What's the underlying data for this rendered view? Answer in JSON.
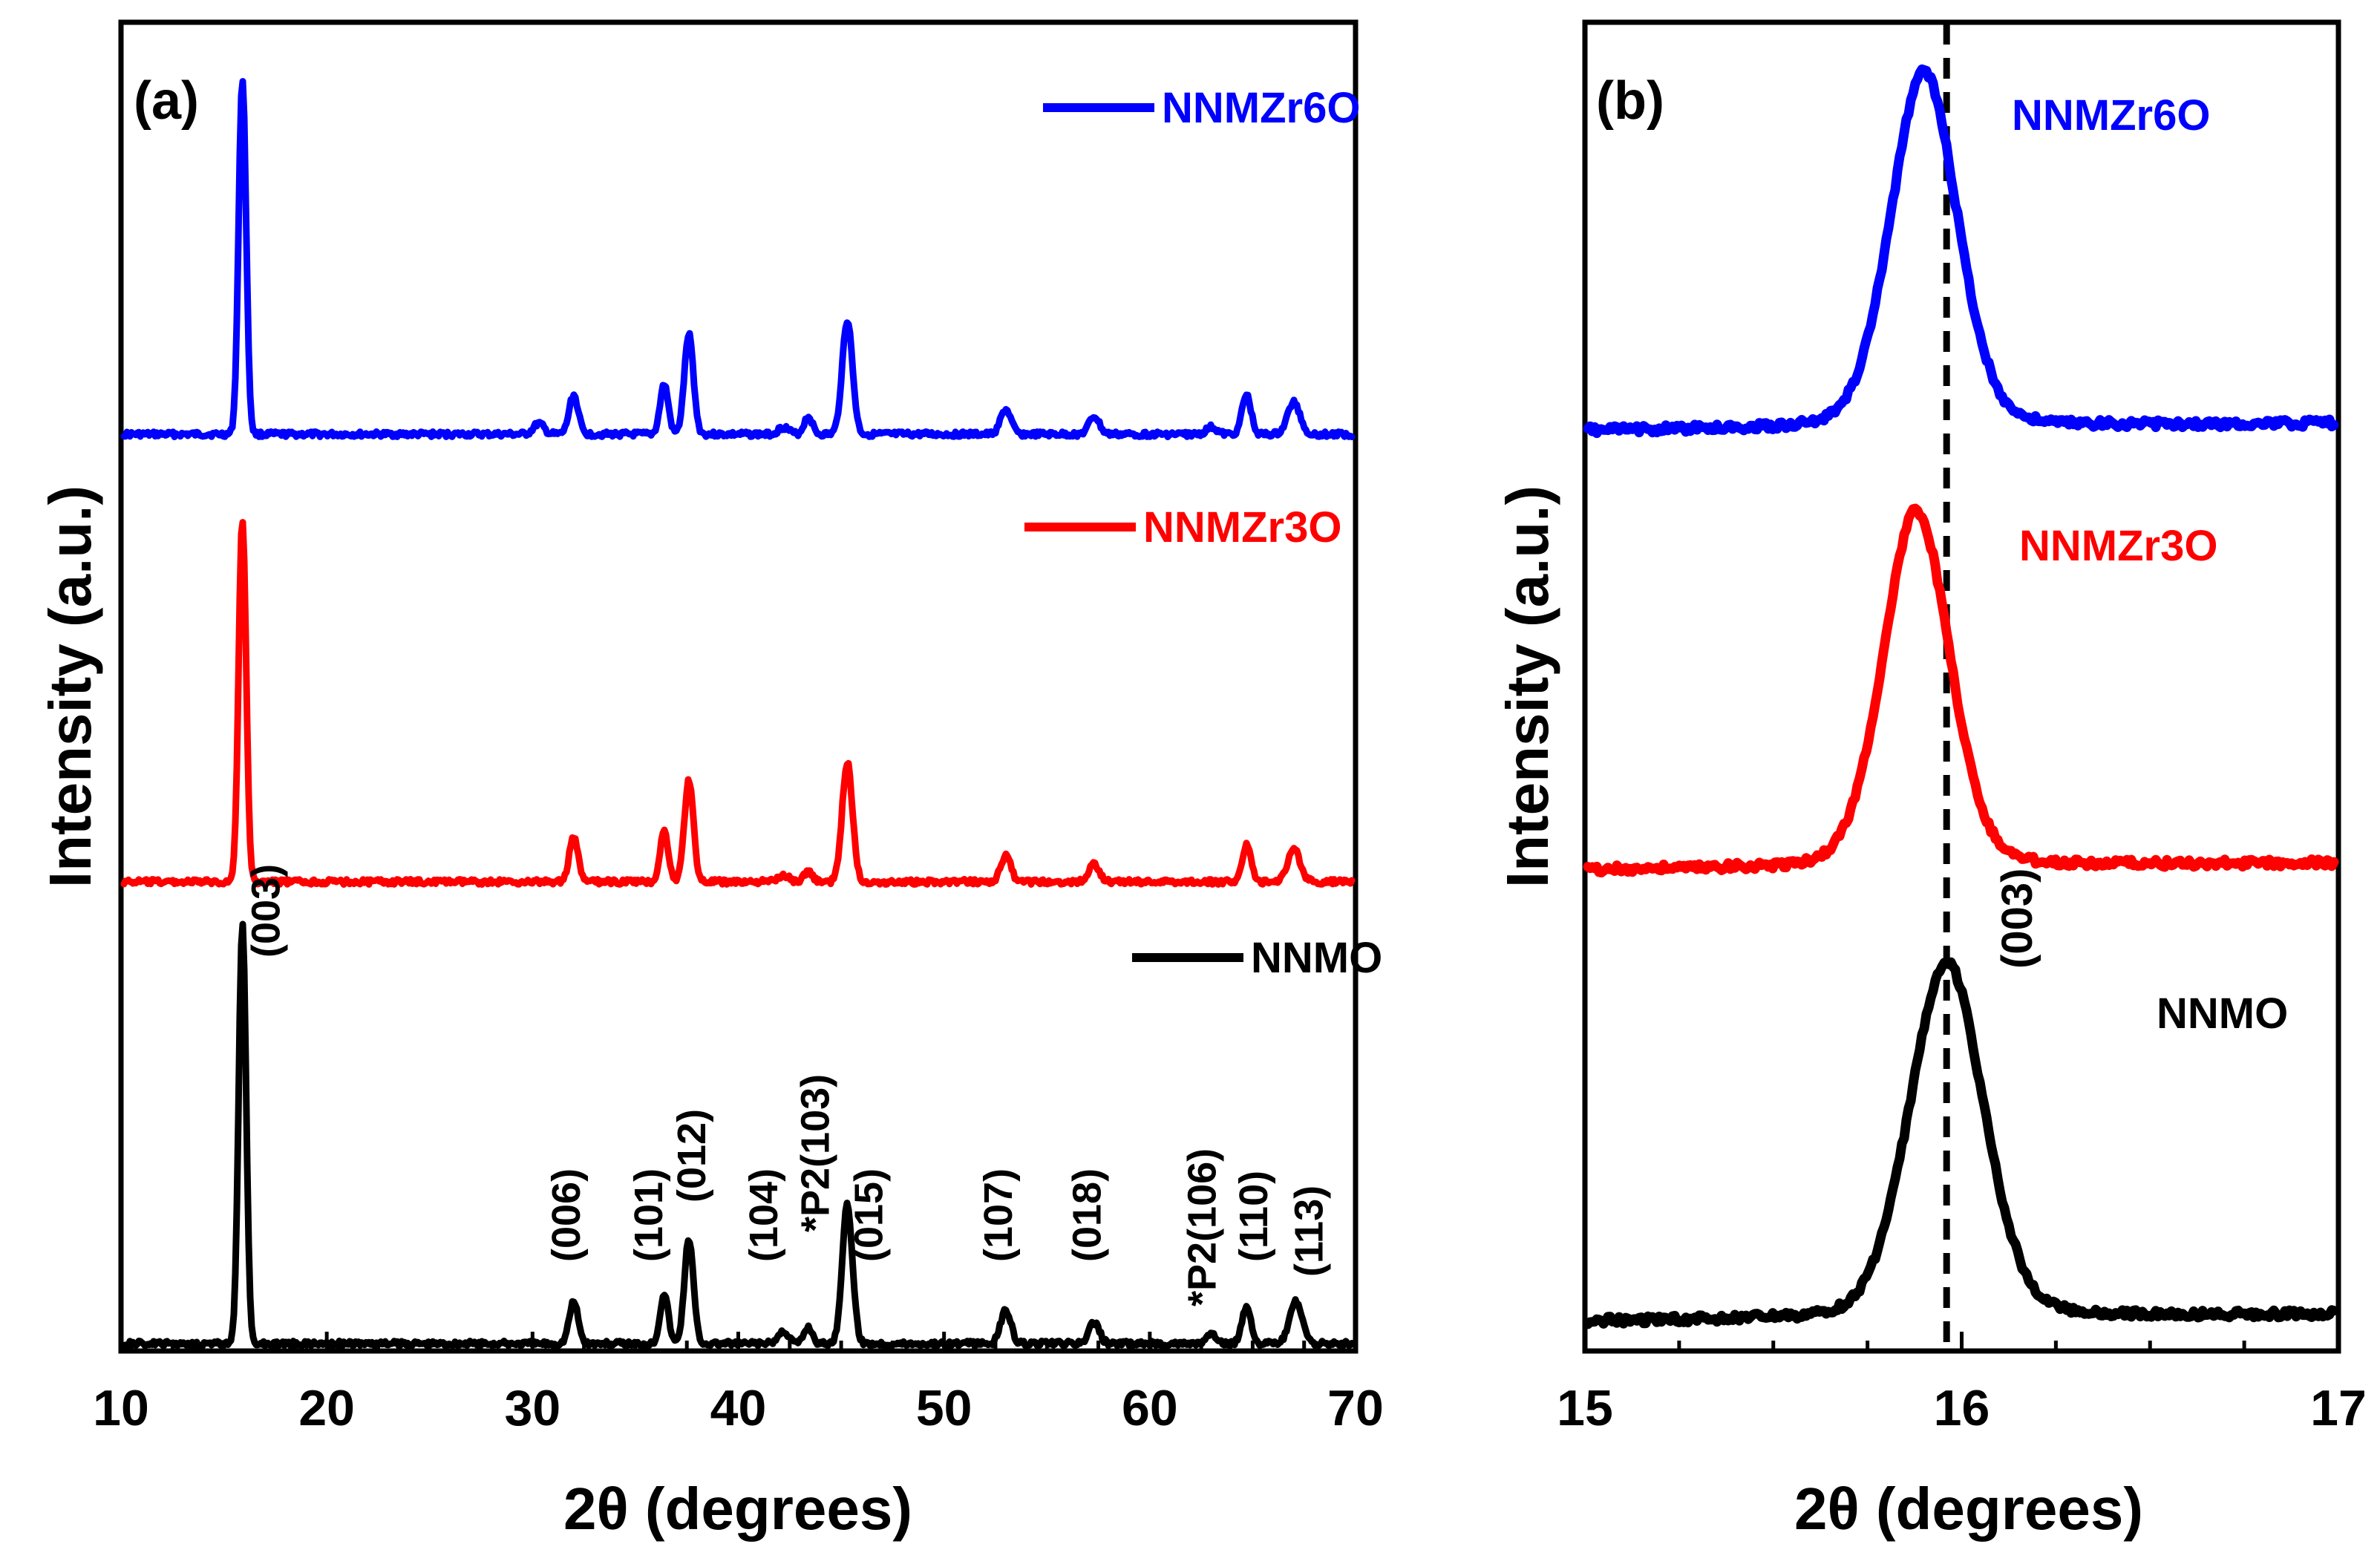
{
  "chart_data": [
    {
      "type": "line",
      "panel_label": "(a)",
      "xlabel": "2θ (degrees)",
      "ylabel": "Intensity (a.u.)",
      "xlim": [
        10,
        70
      ],
      "xticks": [
        10,
        20,
        30,
        40,
        50,
        60,
        70
      ],
      "yticks": false,
      "legend_position": "per-trace, right",
      "series": [
        {
          "name": "NNMZr6O",
          "color": "#0000ff",
          "order": 0,
          "peaks": [
            {
              "x": 15.9,
              "h": 1.0,
              "w": 0.18
            },
            {
              "x": 30.3,
              "h": 0.03,
              "w": 0.25
            },
            {
              "x": 32.0,
              "h": 0.11,
              "w": 0.22
            },
            {
              "x": 36.4,
              "h": 0.14,
              "w": 0.2
            },
            {
              "x": 37.6,
              "h": 0.28,
              "w": 0.22
            },
            {
              "x": 42.2,
              "h": 0.02,
              "w": 0.25
            },
            {
              "x": 43.4,
              "h": 0.05,
              "w": 0.2
            },
            {
              "x": 45.3,
              "h": 0.32,
              "w": 0.25
            },
            {
              "x": 53.0,
              "h": 0.07,
              "w": 0.25
            },
            {
              "x": 57.3,
              "h": 0.05,
              "w": 0.25
            },
            {
              "x": 63.0,
              "h": 0.02,
              "w": 0.25
            },
            {
              "x": 64.7,
              "h": 0.11,
              "w": 0.22
            },
            {
              "x": 67.0,
              "h": 0.09,
              "w": 0.3
            }
          ]
        },
        {
          "name": "NNMZr3O",
          "color": "#ff0000",
          "order": 1,
          "peaks": [
            {
              "x": 15.9,
              "h": 1.0,
              "w": 0.18
            },
            {
              "x": 32.0,
              "h": 0.12,
              "w": 0.22
            },
            {
              "x": 36.4,
              "h": 0.14,
              "w": 0.2
            },
            {
              "x": 37.6,
              "h": 0.28,
              "w": 0.22
            },
            {
              "x": 42.2,
              "h": 0.02,
              "w": 0.25
            },
            {
              "x": 43.4,
              "h": 0.03,
              "w": 0.2
            },
            {
              "x": 45.3,
              "h": 0.33,
              "w": 0.25
            },
            {
              "x": 53.0,
              "h": 0.07,
              "w": 0.25
            },
            {
              "x": 57.3,
              "h": 0.05,
              "w": 0.25
            },
            {
              "x": 64.7,
              "h": 0.1,
              "w": 0.22
            },
            {
              "x": 67.0,
              "h": 0.09,
              "w": 0.3
            }
          ]
        },
        {
          "name": "NNMO",
          "color": "#000000",
          "order": 2,
          "peaks": [
            {
              "x": 15.9,
              "h": 1.0,
              "w": 0.18
            },
            {
              "x": 32.0,
              "h": 0.1,
              "w": 0.22
            },
            {
              "x": 36.4,
              "h": 0.12,
              "w": 0.2
            },
            {
              "x": 37.6,
              "h": 0.25,
              "w": 0.22
            },
            {
              "x": 42.2,
              "h": 0.03,
              "w": 0.25
            },
            {
              "x": 43.4,
              "h": 0.04,
              "w": 0.2
            },
            {
              "x": 45.3,
              "h": 0.33,
              "w": 0.25
            },
            {
              "x": 53.0,
              "h": 0.08,
              "w": 0.25
            },
            {
              "x": 57.3,
              "h": 0.05,
              "w": 0.25
            },
            {
              "x": 63.0,
              "h": 0.02,
              "w": 0.25
            },
            {
              "x": 64.7,
              "h": 0.09,
              "w": 0.22
            },
            {
              "x": 67.1,
              "h": 0.1,
              "w": 0.3
            }
          ]
        }
      ],
      "annotations": [
        {
          "text": "(003)",
          "x": 17.7
        },
        {
          "text": "(006)",
          "x": 32.3
        },
        {
          "text": "(101)",
          "x": 36.3
        },
        {
          "text": "(012)",
          "x": 38.4
        },
        {
          "text": "(104)",
          "x": 41.9
        },
        {
          "text": "*P2(103)",
          "x": 44.4
        },
        {
          "text": "(015)",
          "x": 47.0
        },
        {
          "text": "(107)",
          "x": 53.3
        },
        {
          "text": "(018)",
          "x": 57.6
        },
        {
          "text": "*P2(106)",
          "x": 63.2
        },
        {
          "text": "(110)",
          "x": 65.7
        },
        {
          "text": "(113)",
          "x": 68.4
        }
      ]
    },
    {
      "type": "line",
      "panel_label": "(b)",
      "xlabel": "2θ (degrees)",
      "ylabel": "Intensity (a.u.)",
      "xlim": [
        15,
        17
      ],
      "xticks": [
        15,
        16,
        17
      ],
      "yticks": false,
      "reference_line": {
        "x": 15.96,
        "style": "dashed"
      },
      "reference_label": "(003)",
      "series": [
        {
          "name": "NNMZr6O",
          "color": "#0000ff",
          "order": 0,
          "center": 15.9,
          "width": 0.09
        },
        {
          "name": "NNMZr3O",
          "color": "#ff0000",
          "order": 1,
          "center": 15.88,
          "width": 0.09
        },
        {
          "name": "NNMO",
          "color": "#000000",
          "order": 2,
          "center": 15.96,
          "width": 0.1
        }
      ]
    }
  ]
}
